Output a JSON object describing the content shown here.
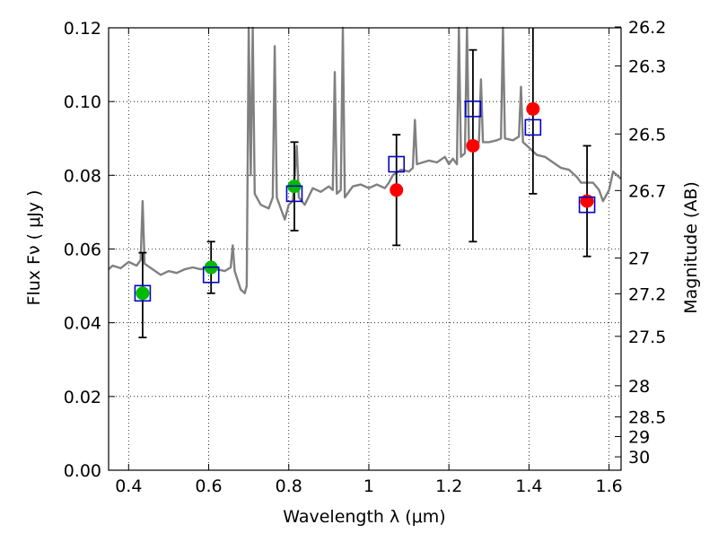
{
  "chart_data": {
    "type": "scatter",
    "xlabel": "Wavelength  λ (μm)",
    "ylabel": "Flux  Fν  ( μJy )",
    "ylabel_right": "Magnitude (AB)",
    "xlim": [
      0.35,
      1.63
    ],
    "ylim": [
      0.0,
      0.12
    ],
    "x_ticks": [
      "0.4",
      "0.6",
      "0.8",
      "1",
      "1.2",
      "1.4",
      "1.6"
    ],
    "y_ticks": [
      "0.00",
      "0.02",
      "0.04",
      "0.06",
      "0.08",
      "0.10",
      "0.12"
    ],
    "mag_ticks": [
      "26.2",
      "26.3",
      "26.5",
      "26.7",
      "27",
      "27.2",
      "27.5",
      "28",
      "28.5",
      "29",
      "30"
    ],
    "grid": true,
    "colors": {
      "spectrum": "#808080",
      "observed_blue_band": "#00bb00",
      "observed_red_band": "#ff0000",
      "model": "#0000cc",
      "error_bar": "#000000"
    },
    "series": [
      {
        "marker": "square-open",
        "points": [
          {
            "x": 0.435,
            "y": 0.048
          },
          {
            "x": 0.606,
            "y": 0.053
          },
          {
            "x": 0.814,
            "y": 0.075
          },
          {
            "x": 1.069,
            "y": 0.083
          },
          {
            "x": 1.26,
            "y": 0.098
          },
          {
            "x": 1.41,
            "y": 0.093
          },
          {
            "x": 1.545,
            "y": 0.072
          }
        ]
      },
      {
        "marker": "circle-filled",
        "points": [
          {
            "x": 0.435,
            "y": 0.048,
            "err_low": 0.012,
            "err_high": 0.011
          },
          {
            "x": 0.606,
            "y": 0.055,
            "err_low": 0.007,
            "err_high": 0.007
          },
          {
            "x": 0.814,
            "y": 0.077,
            "err_low": 0.012,
            "err_high": 0.012
          },
          {
            "x": 1.069,
            "y": 0.076,
            "err_low": 0.015,
            "err_high": 0.015
          },
          {
            "x": 1.26,
            "y": 0.088,
            "err_low": 0.026,
            "err_high": 0.026
          },
          {
            "x": 1.41,
            "y": 0.098,
            "err_low": 0.023,
            "err_high": 0.023
          },
          {
            "x": 1.545,
            "y": 0.073,
            "err_low": 0.015,
            "err_high": 0.015
          }
        ]
      },
      {
        "marker": "line",
        "points": [
          {
            "x": 0.35,
            "y": 0.0545
          },
          {
            "x": 0.36,
            "y": 0.0555
          },
          {
            "x": 0.38,
            "y": 0.0548
          },
          {
            "x": 0.4,
            "y": 0.0565
          },
          {
            "x": 0.42,
            "y": 0.0555
          },
          {
            "x": 0.43,
            "y": 0.057
          },
          {
            "x": 0.435,
            "y": 0.073
          },
          {
            "x": 0.44,
            "y": 0.056
          },
          {
            "x": 0.46,
            "y": 0.0545
          },
          {
            "x": 0.48,
            "y": 0.053
          },
          {
            "x": 0.5,
            "y": 0.054
          },
          {
            "x": 0.52,
            "y": 0.0535
          },
          {
            "x": 0.54,
            "y": 0.0545
          },
          {
            "x": 0.56,
            "y": 0.055
          },
          {
            "x": 0.58,
            "y": 0.0545
          },
          {
            "x": 0.6,
            "y": 0.055
          },
          {
            "x": 0.62,
            "y": 0.0545
          },
          {
            "x": 0.64,
            "y": 0.054
          },
          {
            "x": 0.655,
            "y": 0.055
          },
          {
            "x": 0.66,
            "y": 0.061
          },
          {
            "x": 0.665,
            "y": 0.054
          },
          {
            "x": 0.68,
            "y": 0.049
          },
          {
            "x": 0.69,
            "y": 0.048
          },
          {
            "x": 0.695,
            "y": 0.05
          },
          {
            "x": 0.7,
            "y": 0.12
          },
          {
            "x": 0.705,
            "y": 0.08
          },
          {
            "x": 0.71,
            "y": 0.12
          },
          {
            "x": 0.715,
            "y": 0.075
          },
          {
            "x": 0.73,
            "y": 0.072
          },
          {
            "x": 0.75,
            "y": 0.071
          },
          {
            "x": 0.76,
            "y": 0.074
          },
          {
            "x": 0.765,
            "y": 0.115
          },
          {
            "x": 0.77,
            "y": 0.074
          },
          {
            "x": 0.79,
            "y": 0.068
          },
          {
            "x": 0.8,
            "y": 0.072
          },
          {
            "x": 0.81,
            "y": 0.073
          },
          {
            "x": 0.82,
            "y": 0.088
          },
          {
            "x": 0.825,
            "y": 0.074
          },
          {
            "x": 0.84,
            "y": 0.072
          },
          {
            "x": 0.86,
            "y": 0.0765
          },
          {
            "x": 0.88,
            "y": 0.0755
          },
          {
            "x": 0.9,
            "y": 0.077
          },
          {
            "x": 0.91,
            "y": 0.076
          },
          {
            "x": 0.915,
            "y": 0.108
          },
          {
            "x": 0.92,
            "y": 0.075
          },
          {
            "x": 0.93,
            "y": 0.076
          },
          {
            "x": 0.935,
            "y": 0.12
          },
          {
            "x": 0.94,
            "y": 0.074
          },
          {
            "x": 0.96,
            "y": 0.077
          },
          {
            "x": 0.98,
            "y": 0.0775
          },
          {
            "x": 1.0,
            "y": 0.0765
          },
          {
            "x": 1.02,
            "y": 0.0775
          },
          {
            "x": 1.04,
            "y": 0.0765
          },
          {
            "x": 1.05,
            "y": 0.078
          },
          {
            "x": 1.06,
            "y": 0.08
          },
          {
            "x": 1.08,
            "y": 0.0815
          },
          {
            "x": 1.1,
            "y": 0.081
          },
          {
            "x": 1.11,
            "y": 0.082
          },
          {
            "x": 1.115,
            "y": 0.095
          },
          {
            "x": 1.12,
            "y": 0.083
          },
          {
            "x": 1.15,
            "y": 0.084
          },
          {
            "x": 1.17,
            "y": 0.0835
          },
          {
            "x": 1.19,
            "y": 0.085
          },
          {
            "x": 1.2,
            "y": 0.083
          },
          {
            "x": 1.21,
            "y": 0.0845
          },
          {
            "x": 1.22,
            "y": 0.083
          },
          {
            "x": 1.225,
            "y": 0.12
          },
          {
            "x": 1.23,
            "y": 0.085
          },
          {
            "x": 1.24,
            "y": 0.086
          },
          {
            "x": 1.245,
            "y": 0.12
          },
          {
            "x": 1.25,
            "y": 0.088
          },
          {
            "x": 1.26,
            "y": 0.089
          },
          {
            "x": 1.275,
            "y": 0.089
          },
          {
            "x": 1.28,
            "y": 0.106
          },
          {
            "x": 1.285,
            "y": 0.089
          },
          {
            "x": 1.3,
            "y": 0.089
          },
          {
            "x": 1.32,
            "y": 0.0895
          },
          {
            "x": 1.33,
            "y": 0.09
          },
          {
            "x": 1.335,
            "y": 0.12
          },
          {
            "x": 1.34,
            "y": 0.09
          },
          {
            "x": 1.36,
            "y": 0.0895
          },
          {
            "x": 1.375,
            "y": 0.0905
          },
          {
            "x": 1.38,
            "y": 0.104
          },
          {
            "x": 1.385,
            "y": 0.089
          },
          {
            "x": 1.4,
            "y": 0.0875
          },
          {
            "x": 1.42,
            "y": 0.0855
          },
          {
            "x": 1.44,
            "y": 0.085
          },
          {
            "x": 1.46,
            "y": 0.0835
          },
          {
            "x": 1.48,
            "y": 0.082
          },
          {
            "x": 1.5,
            "y": 0.0815
          },
          {
            "x": 1.52,
            "y": 0.0795
          },
          {
            "x": 1.53,
            "y": 0.078
          },
          {
            "x": 1.56,
            "y": 0.078
          },
          {
            "x": 1.575,
            "y": 0.076
          },
          {
            "x": 1.585,
            "y": 0.073
          },
          {
            "x": 1.6,
            "y": 0.076
          },
          {
            "x": 1.61,
            "y": 0.081
          },
          {
            "x": 1.62,
            "y": 0.08
          },
          {
            "x": 1.63,
            "y": 0.079
          }
        ]
      }
    ]
  }
}
